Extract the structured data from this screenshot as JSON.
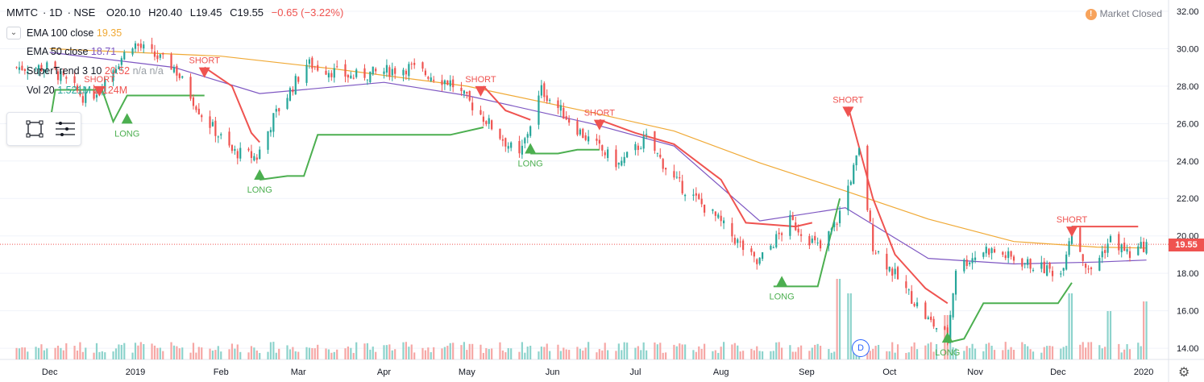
{
  "header": {
    "symbol": "MMTC",
    "interval": "1D",
    "exchange": "NSE",
    "open": "O20.10",
    "high": "H20.40",
    "low": "L19.45",
    "close": "C19.55",
    "change": "−0.65 (−3.22%)"
  },
  "indicators": [
    {
      "label": "EMA 100 close",
      "value": "19.35"
    },
    {
      "label": "EMA 50 close",
      "value": "18.71"
    },
    {
      "label": "SuperTrend 3 10",
      "value": "20.52",
      "extra": "n/a n/a"
    },
    {
      "label": "Vol 20",
      "value": "1.521M",
      "extra": "2.124M"
    }
  ],
  "market_status": {
    "label": "Market Closed",
    "icon": "!"
  },
  "last_price_tag": "19.55",
  "event_badge": "D",
  "colors": {
    "up": "#26a69a",
    "down": "#ef5350",
    "ema100": "#f0a935",
    "ema50": "#7e57c2",
    "supertrend_up": "#4caf50",
    "supertrend_down": "#ef5350",
    "vol_up": "#8dd3cc",
    "vol_down": "#f6a7a5"
  },
  "chart_data": {
    "type": "candlestick",
    "symbol": "MMTC",
    "interval": "1D",
    "exchange": "NSE",
    "y_axis": {
      "ticks": [
        "32.00",
        "30.00",
        "28.00",
        "26.00",
        "24.00",
        "22.00",
        "20.00",
        "18.00",
        "16.00",
        "14.00"
      ],
      "range": [
        13.4,
        32.6
      ]
    },
    "x_axis": {
      "labels": [
        "Dec",
        "2019",
        "Feb",
        "Mar",
        "Apr",
        "May",
        "Jun",
        "Jul",
        "Aug",
        "Sep",
        "Oct",
        "Nov",
        "Dec",
        "2020"
      ]
    },
    "close_series_approx": [
      {
        "date": "2018-12-01",
        "close": 29.0
      },
      {
        "date": "2018-12-15",
        "close": 27.2
      },
      {
        "date": "2018-12-31",
        "close": 30.3
      },
      {
        "date": "2019-01-15",
        "close": 29.0
      },
      {
        "date": "2019-01-25",
        "close": 26.5
      },
      {
        "date": "2019-02-05",
        "close": 24.5
      },
      {
        "date": "2019-02-14",
        "close": 24.2
      },
      {
        "date": "2019-02-20",
        "close": 26.3
      },
      {
        "date": "2019-03-04",
        "close": 29.2
      },
      {
        "date": "2019-03-20",
        "close": 28.5
      },
      {
        "date": "2019-04-10",
        "close": 29.0
      },
      {
        "date": "2019-04-25",
        "close": 28.2
      },
      {
        "date": "2019-05-06",
        "close": 26.5
      },
      {
        "date": "2019-05-20",
        "close": 24.2
      },
      {
        "date": "2019-05-28",
        "close": 27.8
      },
      {
        "date": "2019-06-12",
        "close": 25.4
      },
      {
        "date": "2019-06-25",
        "close": 23.8
      },
      {
        "date": "2019-07-05",
        "close": 25.2
      },
      {
        "date": "2019-07-15",
        "close": 23.0
      },
      {
        "date": "2019-07-30",
        "close": 21.0
      },
      {
        "date": "2019-08-14",
        "close": 18.5
      },
      {
        "date": "2019-08-26",
        "close": 20.8
      },
      {
        "date": "2019-09-06",
        "close": 19.3
      },
      {
        "date": "2019-09-12",
        "close": 20.8
      },
      {
        "date": "2019-09-20",
        "close": 24.5
      },
      {
        "date": "2019-09-25",
        "close": 19.5
      },
      {
        "date": "2019-10-05",
        "close": 17.5
      },
      {
        "date": "2019-10-15",
        "close": 15.5
      },
      {
        "date": "2019-10-22",
        "close": 14.6
      },
      {
        "date": "2019-10-25",
        "close": 18.3
      },
      {
        "date": "2019-11-05",
        "close": 19.3
      },
      {
        "date": "2019-11-20",
        "close": 18.5
      },
      {
        "date": "2019-12-02",
        "close": 18.0
      },
      {
        "date": "2019-12-06",
        "close": 20.5
      },
      {
        "date": "2019-12-12",
        "close": 18.0
      },
      {
        "date": "2019-12-20",
        "close": 19.8
      },
      {
        "date": "2019-12-27",
        "close": 19.0
      },
      {
        "date": "2020-01-02",
        "close": 19.55
      }
    ],
    "ema100_approx": [
      {
        "date": "2018-12-01",
        "y": 30.0
      },
      {
        "date": "2019-02-01",
        "y": 29.6
      },
      {
        "date": "2019-03-15",
        "y": 28.9
      },
      {
        "date": "2019-05-01",
        "y": 28.0
      },
      {
        "date": "2019-06-15",
        "y": 26.6
      },
      {
        "date": "2019-07-15",
        "y": 25.6
      },
      {
        "date": "2019-08-15",
        "y": 23.9
      },
      {
        "date": "2019-09-15",
        "y": 22.4
      },
      {
        "date": "2019-10-15",
        "y": 20.9
      },
      {
        "date": "2019-11-15",
        "y": 19.7
      },
      {
        "date": "2019-12-15",
        "y": 19.4
      },
      {
        "date": "2020-01-02",
        "y": 19.35
      }
    ],
    "ema50_approx": [
      {
        "date": "2018-12-01",
        "y": 29.8
      },
      {
        "date": "2019-01-15",
        "y": 29.0
      },
      {
        "date": "2019-02-15",
        "y": 27.6
      },
      {
        "date": "2019-04-01",
        "y": 28.2
      },
      {
        "date": "2019-05-01",
        "y": 27.5
      },
      {
        "date": "2019-06-15",
        "y": 26.0
      },
      {
        "date": "2019-07-15",
        "y": 24.8
      },
      {
        "date": "2019-08-15",
        "y": 20.8
      },
      {
        "date": "2019-09-15",
        "y": 21.5
      },
      {
        "date": "2019-10-15",
        "y": 18.8
      },
      {
        "date": "2019-11-15",
        "y": 18.5
      },
      {
        "date": "2019-12-15",
        "y": 18.6
      },
      {
        "date": "2020-01-02",
        "y": 18.71
      }
    ],
    "supertrend_segments": [
      {
        "trend": "up",
        "points": [
          [
            "2018-12-01",
            26.0
          ],
          [
            "2018-12-03",
            27.8
          ],
          [
            "2018-12-20",
            27.8
          ],
          [
            "2018-12-24",
            26.1
          ],
          [
            "2018-12-29",
            27.5
          ],
          [
            "2019-01-26",
            27.5
          ]
        ]
      },
      {
        "trend": "down",
        "points": [
          [
            "2019-01-26",
            29.0
          ],
          [
            "2019-02-05",
            28.0
          ],
          [
            "2019-02-12",
            25.5
          ],
          [
            "2019-02-15",
            25.0
          ]
        ]
      },
      {
        "trend": "up",
        "points": [
          [
            "2019-02-15",
            23.0
          ],
          [
            "2019-02-25",
            23.2
          ],
          [
            "2019-03-03",
            23.2
          ],
          [
            "2019-03-08",
            25.4
          ],
          [
            "2019-04-25",
            25.4
          ],
          [
            "2019-05-07",
            25.8
          ]
        ]
      },
      {
        "trend": "down",
        "points": [
          [
            "2019-05-07",
            28.0
          ],
          [
            "2019-05-15",
            26.7
          ],
          [
            "2019-05-24",
            26.2
          ]
        ]
      },
      {
        "trend": "up",
        "points": [
          [
            "2019-05-24",
            24.4
          ],
          [
            "2019-06-03",
            24.4
          ],
          [
            "2019-06-10",
            24.6
          ],
          [
            "2019-06-18",
            24.6
          ]
        ]
      },
      {
        "trend": "down",
        "points": [
          [
            "2019-06-18",
            26.2
          ],
          [
            "2019-07-01",
            25.5
          ],
          [
            "2019-07-15",
            24.9
          ],
          [
            "2019-08-01",
            23.0
          ],
          [
            "2019-08-10",
            20.7
          ],
          [
            "2019-08-28",
            20.5
          ],
          [
            "2019-09-03",
            20.7
          ]
        ]
      },
      {
        "trend": "up",
        "points": [
          [
            "2019-08-20",
            17.3
          ],
          [
            "2019-09-05",
            17.3
          ],
          [
            "2019-09-13",
            22.0
          ]
        ]
      },
      {
        "trend": "down",
        "points": [
          [
            "2019-09-16",
            26.9
          ],
          [
            "2019-09-25",
            22.0
          ],
          [
            "2019-10-03",
            19.0
          ],
          [
            "2019-10-14",
            17.2
          ],
          [
            "2019-10-22",
            16.4
          ]
        ]
      },
      {
        "trend": "up",
        "points": [
          [
            "2019-10-22",
            14.3
          ],
          [
            "2019-10-28",
            14.5
          ],
          [
            "2019-11-04",
            16.4
          ],
          [
            "2019-12-01",
            16.4
          ],
          [
            "2019-12-06",
            17.5
          ]
        ]
      },
      {
        "trend": "down",
        "points": [
          [
            "2019-12-06",
            20.5
          ],
          [
            "2019-12-30",
            20.5
          ]
        ]
      }
    ],
    "signals": [
      {
        "type": "SHORT",
        "date": "2018-12-19"
      },
      {
        "type": "LONG",
        "date": "2018-12-29"
      },
      {
        "type": "SHORT",
        "date": "2019-01-26"
      },
      {
        "type": "LONG",
        "date": "2019-02-15"
      },
      {
        "type": "SHORT",
        "date": "2019-05-06"
      },
      {
        "type": "LONG",
        "date": "2019-05-24"
      },
      {
        "type": "SHORT",
        "date": "2019-06-18"
      },
      {
        "type": "LONG",
        "date": "2019-08-23"
      },
      {
        "type": "SHORT",
        "date": "2019-09-16"
      },
      {
        "type": "LONG",
        "date": "2019-10-22"
      },
      {
        "type": "SHORT",
        "date": "2019-12-06"
      }
    ],
    "volume_peaks_approx": [
      {
        "date": "2019-09-13",
        "vol_rel": 1.0
      },
      {
        "date": "2019-09-16",
        "vol_rel": 0.82
      },
      {
        "date": "2019-10-22",
        "vol_rel": 0.55
      },
      {
        "date": "2019-12-06",
        "vol_rel": 0.82
      },
      {
        "date": "2019-12-20",
        "vol_rel": 0.6
      },
      {
        "date": "2020-01-02",
        "vol_rel": 0.72
      }
    ]
  }
}
